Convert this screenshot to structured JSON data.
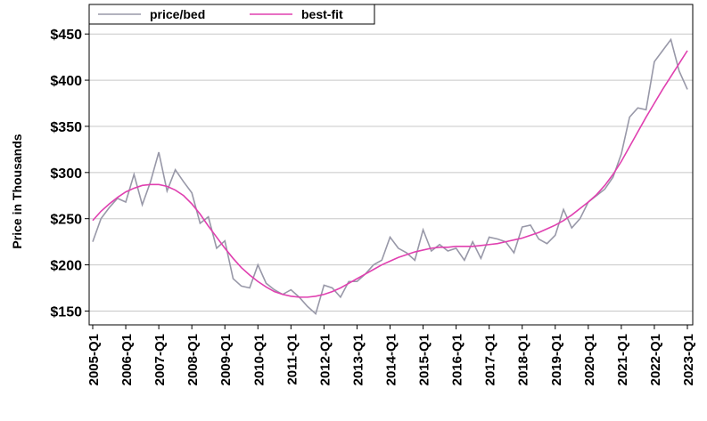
{
  "chart_data": {
    "type": "line",
    "ylabel": "Price in Thousands",
    "categories": [
      "2005-Q1",
      null,
      null,
      null,
      "2006-Q1",
      null,
      null,
      null,
      "2007-Q1",
      null,
      null,
      null,
      "2008-Q1",
      null,
      null,
      null,
      "2009-Q1",
      null,
      null,
      null,
      "2010-Q1",
      null,
      null,
      null,
      "2011-Q1",
      null,
      null,
      null,
      "2012-Q1",
      null,
      null,
      null,
      "2013-Q1",
      null,
      null,
      null,
      "2014-Q1",
      null,
      null,
      null,
      "2015-Q1",
      null,
      null,
      null,
      "2016-Q1",
      null,
      null,
      null,
      "2017-Q1",
      null,
      null,
      null,
      "2018-Q1",
      null,
      null,
      null,
      "2019-Q1",
      null,
      null,
      null,
      "2020-Q1",
      null,
      null,
      null,
      "2021-Q1",
      null,
      null,
      null,
      "2022-Q1",
      null,
      null,
      null,
      "2023-Q1"
    ],
    "series": [
      {
        "name": "price/bed",
        "color": "#9898a8",
        "values": [
          225,
          250,
          262,
          272,
          268,
          298,
          265,
          290,
          322,
          280,
          303,
          290,
          278,
          245,
          252,
          218,
          226,
          185,
          177,
          175,
          200,
          180,
          173,
          168,
          173,
          165,
          155,
          147,
          178,
          175,
          165,
          182,
          182,
          190,
          200,
          205,
          230,
          218,
          213,
          205,
          238,
          215,
          222,
          215,
          218,
          205,
          225,
          207,
          230,
          228,
          225,
          213,
          241,
          243,
          228,
          223,
          232,
          260,
          240,
          250,
          268,
          275,
          282,
          295,
          320,
          360,
          370,
          368,
          420,
          432,
          444,
          410,
          390
        ]
      },
      {
        "name": "best-fit",
        "color": "#e040b0",
        "values": [
          248,
          258,
          266,
          273,
          279,
          283,
          286,
          287,
          287,
          285,
          281,
          275,
          266,
          255,
          242,
          230,
          218,
          207,
          197,
          189,
          182,
          176,
          171,
          168,
          166,
          165,
          165,
          166,
          168,
          171,
          175,
          180,
          185,
          190,
          195,
          200,
          204,
          208,
          211,
          214,
          216,
          218,
          219,
          219,
          220,
          220,
          220,
          221,
          222,
          223,
          225,
          227,
          229,
          232,
          235,
          239,
          243,
          248,
          254,
          261,
          268,
          276,
          286,
          298,
          312,
          328,
          344,
          360,
          375,
          390,
          404,
          418,
          432
        ]
      }
    ],
    "ylim": [
      135,
      482
    ],
    "yticks": [
      {
        "value": 150,
        "label": "$150"
      },
      {
        "value": 200,
        "label": "$200"
      },
      {
        "value": 250,
        "label": "$250"
      },
      {
        "value": 300,
        "label": "$300"
      },
      {
        "value": 350,
        "label": "$350"
      },
      {
        "value": 400,
        "label": "$400"
      },
      {
        "value": 450,
        "label": "$450"
      }
    ],
    "grid": true,
    "legend": "upper left"
  }
}
